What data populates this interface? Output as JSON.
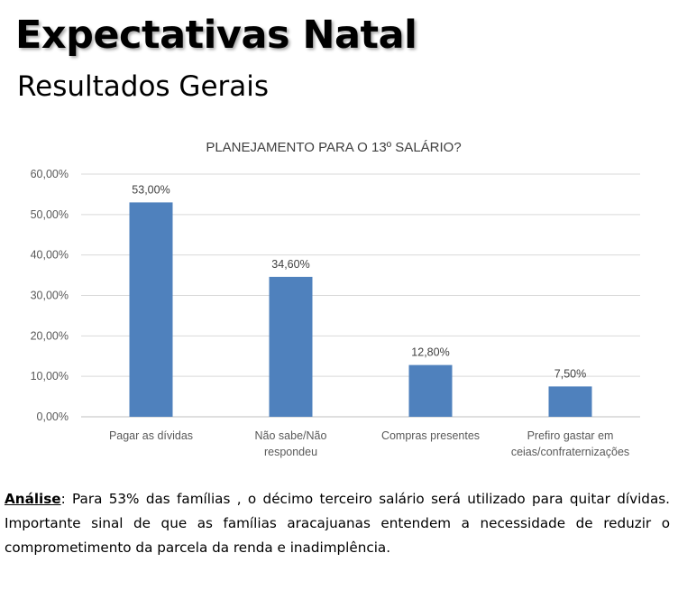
{
  "header": {
    "title": "Expectativas Natal",
    "subtitle": "Resultados Gerais"
  },
  "chart_data": {
    "type": "bar",
    "title": "PLANEJAMENTO PARA O 13º SALÁRIO?",
    "categories": [
      [
        "Pagar as dívidas"
      ],
      [
        "Não sabe/Não",
        "respondeu"
      ],
      [
        "Compras presentes"
      ],
      [
        "Prefiro gastar em",
        "ceias/confraternizações"
      ]
    ],
    "values": [
      53.0,
      34.6,
      12.8,
      7.5
    ],
    "value_labels": [
      "53,00%",
      "34,60%",
      "12,80%",
      "7,50%"
    ],
    "yticks": [
      0,
      10,
      20,
      30,
      40,
      50,
      60
    ],
    "ytick_labels": [
      "0,00%",
      "10,00%",
      "20,00%",
      "30,00%",
      "40,00%",
      "50,00%",
      "60,00%"
    ],
    "ylim": [
      0,
      60
    ],
    "grid": true,
    "legend": "none",
    "bar_color": "#4f81bd"
  },
  "analysis": {
    "label": "Análise",
    "text": ": Para 53% das famílias , o décimo terceiro salário será utilizado para quitar dívidas. Importante sinal de que as famílias aracajuanas entendem a necessidade de reduzir o comprometimento da parcela da renda e inadimplência."
  }
}
